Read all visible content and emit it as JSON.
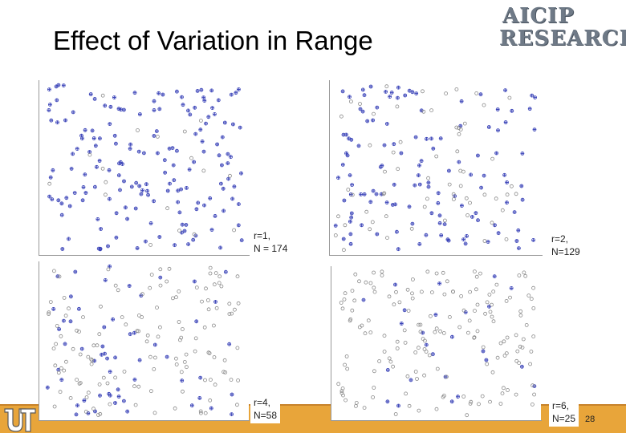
{
  "slide": {
    "title": "Effect of Variation in Range",
    "logo": {
      "line1": "AICIP",
      "line2": "RESEARCH"
    },
    "page_number": "28",
    "accent_color": "#e8a53a"
  },
  "panels": [
    {
      "label_line1": "r=1,",
      "label_line2": "N = 174",
      "count": 174,
      "range": 1,
      "seed": 11
    },
    {
      "label_line1": "r=2,",
      "label_line2": "N=129",
      "count": 129,
      "range": 2,
      "seed": 23
    },
    {
      "label_line1": "r=4,",
      "label_line2": "N=58",
      "count": 58,
      "range": 4,
      "seed": 37
    },
    {
      "label_line1": "r=6,",
      "label_line2": "N=25",
      "count": 25,
      "range": 6,
      "seed": 51
    }
  ],
  "colors": {
    "marker_blue": "#3a43b8",
    "marker_grey": "#8a8a8a"
  },
  "icons": {
    "ut_logo": "ut-logo-icon"
  }
}
